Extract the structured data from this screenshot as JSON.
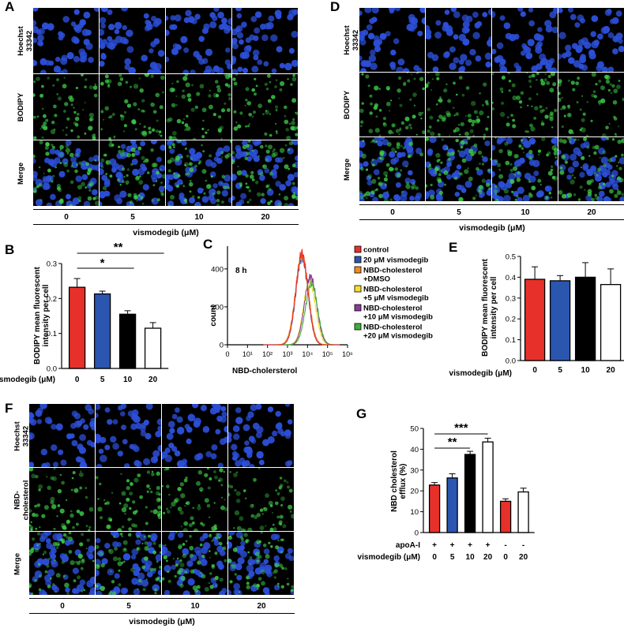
{
  "panels": {
    "A": {
      "label": "A",
      "rows": [
        "Hoechst\n33342",
        "BODIPY",
        "Merge"
      ],
      "cols": [
        "0",
        "5",
        "10",
        "20"
      ],
      "xtitle": "vismodegib (μM)"
    },
    "D": {
      "label": "D",
      "rows": [
        "Hoechst\n33342",
        "BODIPY",
        "Merge"
      ],
      "cols": [
        "0",
        "5",
        "10",
        "20"
      ],
      "xtitle": "vismodegib (μM)"
    },
    "F": {
      "label": "F",
      "rows": [
        "Hoechst\n33342",
        "NBD-\ncholesterol",
        "Merge"
      ],
      "cols": [
        "0",
        "5",
        "10",
        "20"
      ],
      "xtitle": "vismodegib (μM)"
    },
    "B": {
      "label": "B"
    },
    "C": {
      "label": "C"
    },
    "E": {
      "label": "E"
    },
    "G": {
      "label": "G"
    }
  },
  "chart_data": [
    {
      "id": "B",
      "type": "bar",
      "ylabel": "BODIPY mean fluorescent\nintensity per cell",
      "xlabel": "vismodegib (μM)",
      "categories": [
        "0",
        "5",
        "10",
        "20"
      ],
      "values": [
        0.232,
        0.213,
        0.155,
        0.115
      ],
      "errors": [
        0.025,
        0.008,
        0.01,
        0.016
      ],
      "colors": [
        "#e8302a",
        "#2a56b0",
        "#000000",
        "#ffffff"
      ],
      "ylim": [
        0,
        0.3
      ],
      "yticks": [
        "0.0",
        "0.1",
        "0.2",
        "0.3"
      ],
      "significance": [
        {
          "from": 0,
          "to": 2,
          "label": "*"
        },
        {
          "from": 0,
          "to": 3,
          "label": "**"
        }
      ]
    },
    {
      "id": "C",
      "type": "line",
      "annotation": "8 h",
      "xlabel": "NBD-cholersterol",
      "ylabel": "count",
      "xticks": [
        "0",
        "10¹",
        "10²",
        "10³",
        "10⁴",
        "10⁵",
        "10⁶"
      ],
      "yticks": [
        "0",
        "200",
        "400"
      ],
      "ylim": [
        0,
        520
      ],
      "series": [
        {
          "name": "control",
          "color": "#e8302a",
          "peak_log": 3.72,
          "peak": 480,
          "width": 0.3
        },
        {
          "name": "20 μM  vismodegib",
          "color": "#2a56b0",
          "peak_log": 3.72,
          "peak": 460,
          "width": 0.3
        },
        {
          "name": "NBD-cholesterol\n+DMSO",
          "color": "#f08a24",
          "peak_log": 3.72,
          "peak": 470,
          "width": 0.32
        },
        {
          "name": "NBD-cholesterol\n+5 μM  vismodegib",
          "color": "#f2e030",
          "peak_log": 4.1,
          "peak": 330,
          "width": 0.3
        },
        {
          "name": "NBD-cholesterol\n+10 μM  vismodegib",
          "color": "#8e3a9c",
          "peak_log": 4.15,
          "peak": 360,
          "width": 0.3
        },
        {
          "name": "NBD-cholesterol\n+20 μM  vismodegib",
          "color": "#3fae3a",
          "peak_log": 4.2,
          "peak": 320,
          "width": 0.3
        }
      ]
    },
    {
      "id": "E",
      "type": "bar",
      "ylabel": "BODIPY mean fluorescent\nintensity per cell",
      "xlabel": "vismodegib (μM)",
      "categories": [
        "0",
        "5",
        "10",
        "20"
      ],
      "values": [
        0.39,
        0.383,
        0.4,
        0.365
      ],
      "errors": [
        0.06,
        0.025,
        0.07,
        0.075
      ],
      "colors": [
        "#e8302a",
        "#2a56b0",
        "#000000",
        "#ffffff"
      ],
      "ylim": [
        0,
        0.5
      ],
      "yticks": [
        "0.0",
        "0.1",
        "0.2",
        "0.3",
        "0.4",
        "0.5"
      ]
    },
    {
      "id": "G",
      "type": "bar",
      "ylabel": "NBD cholesterol\nefflux (%)",
      "row1_label": "apoA-I",
      "row2_label": "vismodegib (μM)",
      "categories": [
        "0",
        "5",
        "10",
        "20",
        "0",
        "20"
      ],
      "apoA": [
        "+",
        "+",
        "+",
        "+",
        "-",
        "-"
      ],
      "values": [
        22.8,
        26.2,
        37.5,
        43.5,
        15,
        19.5
      ],
      "errors": [
        1.2,
        2,
        1.5,
        1.8,
        1.2,
        1.8
      ],
      "colors": [
        "#e8302a",
        "#2a56b0",
        "#000000",
        "#ffffff",
        "#e8302a",
        "#ffffff"
      ],
      "ylim": [
        0,
        50
      ],
      "yticks": [
        "0",
        "10",
        "20",
        "30",
        "40",
        "50"
      ],
      "significance": [
        {
          "from": 0,
          "to": 2,
          "label": "**"
        },
        {
          "from": 0,
          "to": 3,
          "label": "***"
        }
      ]
    }
  ]
}
